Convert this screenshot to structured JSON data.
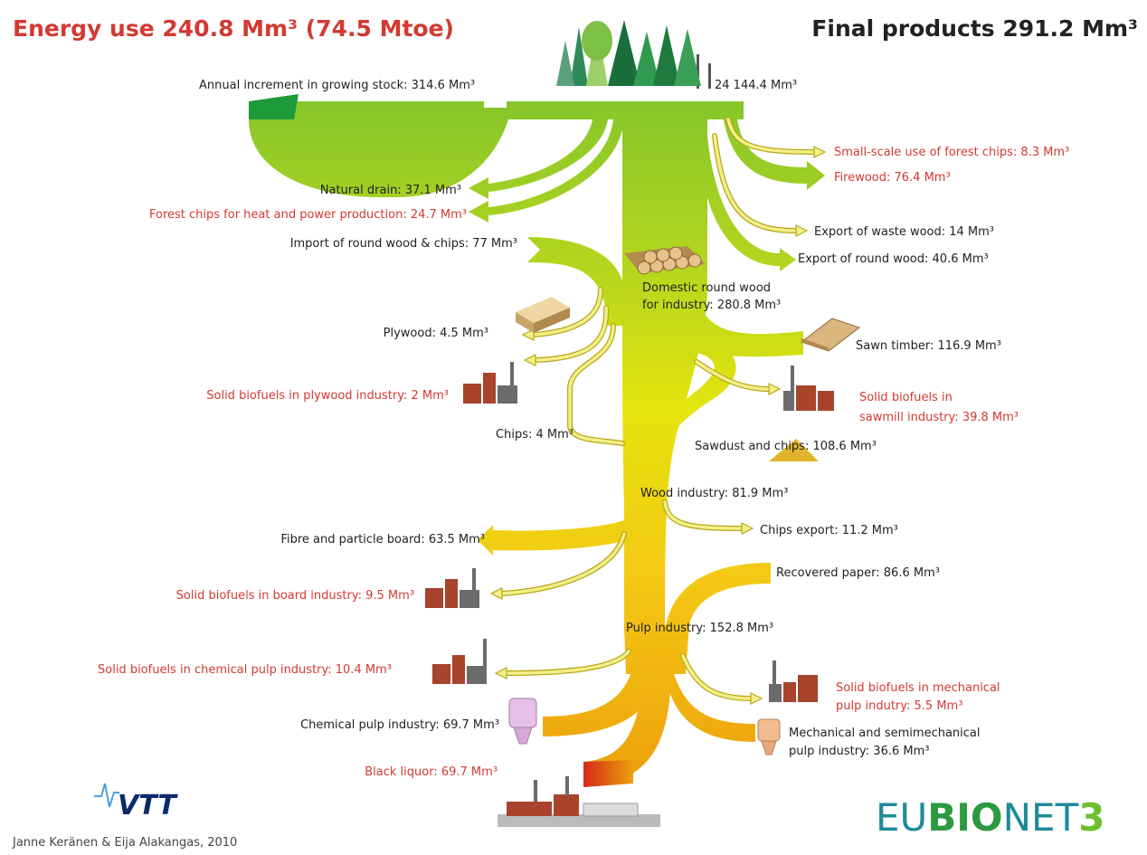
{
  "header": {
    "energy_use": "Energy use 240.8 Mm³ (74.5 Mtoe)",
    "final_products": "Final products 291.2 Mm³"
  },
  "labels": {
    "annual_increment": "Annual increment in growing stock: 314.6 Mm³",
    "growing_stock": "24 144.4 Mm³",
    "small_scale_chips": "Small-scale use of forest chips: 8.3 Mm³",
    "firewood": "Firewood: 76.4 Mm³",
    "natural_drain": "Natural drain: 37.1 Mm³",
    "forest_chips_heat_power": "Forest chips for heat and power production: 24.7 Mm³",
    "import_round_wood": "Import of round wood & chips: 77 Mm³",
    "export_waste_wood": "Export of waste wood: 14 Mm³",
    "export_round_wood": "Export of round wood: 40.6 Mm³",
    "domestic_round_wood": [
      "Domestic round wood",
      "for industry: 280.8 Mm³"
    ],
    "plywood": "Plywood: 4.5 Mm³",
    "sawn_timber": "Sawn timber: 116.9 Mm³",
    "biofuels_plywood": "Solid biofuels in plywood industry: 2 Mm³",
    "biofuels_sawmill": [
      "Solid biofuels in",
      "sawmill industry: 39.8 Mm³"
    ],
    "chips": "Chips: 4 Mm³",
    "sawdust_chips": "Sawdust and chips: 108.6 Mm³",
    "wood_industry": "Wood industry: 81.9 Mm³",
    "chips_export": "Chips export: 11.2 Mm³",
    "fibre_board": "Fibre and particle board: 63.5 Mm³",
    "recovered_paper": "Recovered paper: 86.6 Mm³",
    "biofuels_board": "Solid biofuels in board industry: 9.5 Mm³",
    "pulp_industry": "Pulp industry: 152.8 Mm³",
    "biofuels_chemical_pulp": "Solid biofuels in chemical pulp industry: 10.4 Mm³",
    "biofuels_mechanical_pulp": [
      "Solid biofuels in mechanical",
      "pulp indutry: 5.5 Mm³"
    ],
    "chemical_pulp": "Chemical pulp industry: 69.7 Mm³",
    "mechanical_pulp": [
      "Mechanical and semimechanical",
      "pulp industry: 36.6 Mm³"
    ],
    "black_liquor": "Black liquor: 69.7 Mm³"
  },
  "credit": "Janne Keränen & Eija Alakangas, 2010",
  "logos": {
    "vtt": "VTT",
    "eubionet": [
      "EU",
      "BIO",
      "NET",
      "3"
    ]
  }
}
